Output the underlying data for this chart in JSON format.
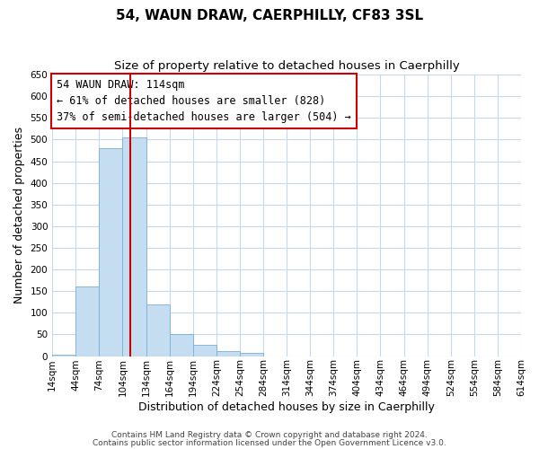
{
  "title": "54, WAUN DRAW, CAERPHILLY, CF83 3SL",
  "subtitle": "Size of property relative to detached houses in Caerphilly",
  "xlabel": "Distribution of detached houses by size in Caerphilly",
  "ylabel": "Number of detached properties",
  "bar_edges": [
    14,
    44,
    74,
    104,
    134,
    164,
    194,
    224,
    254,
    284,
    314,
    344,
    374,
    404,
    434,
    464,
    494,
    524,
    554,
    584,
    614
  ],
  "bar_heights": [
    3,
    160,
    480,
    505,
    120,
    50,
    25,
    12,
    8,
    0,
    0,
    0,
    0,
    0,
    0,
    0,
    0,
    0,
    0,
    0
  ],
  "bar_color": "#c5ddf0",
  "bar_edge_color": "#7ab0d4",
  "property_line_x": 114,
  "property_line_color": "#cc0000",
  "ylim": [
    0,
    650
  ],
  "yticks": [
    0,
    50,
    100,
    150,
    200,
    250,
    300,
    350,
    400,
    450,
    500,
    550,
    600,
    650
  ],
  "annotation_title": "54 WAUN DRAW: 114sqm",
  "annotation_line1": "← 61% of detached houses are smaller (828)",
  "annotation_line2": "37% of semi-detached houses are larger (504) →",
  "annotation_box_color": "#ffffff",
  "annotation_border_color": "#cc0000",
  "footer_line1": "Contains HM Land Registry data © Crown copyright and database right 2024.",
  "footer_line2": "Contains public sector information licensed under the Open Government Licence v3.0.",
  "background_color": "#ffffff",
  "grid_color": "#c8d8e8",
  "title_fontsize": 11,
  "subtitle_fontsize": 9.5,
  "axis_label_fontsize": 9,
  "tick_label_fontsize": 7.5,
  "footer_fontsize": 6.5,
  "annotation_fontsize": 8.5
}
